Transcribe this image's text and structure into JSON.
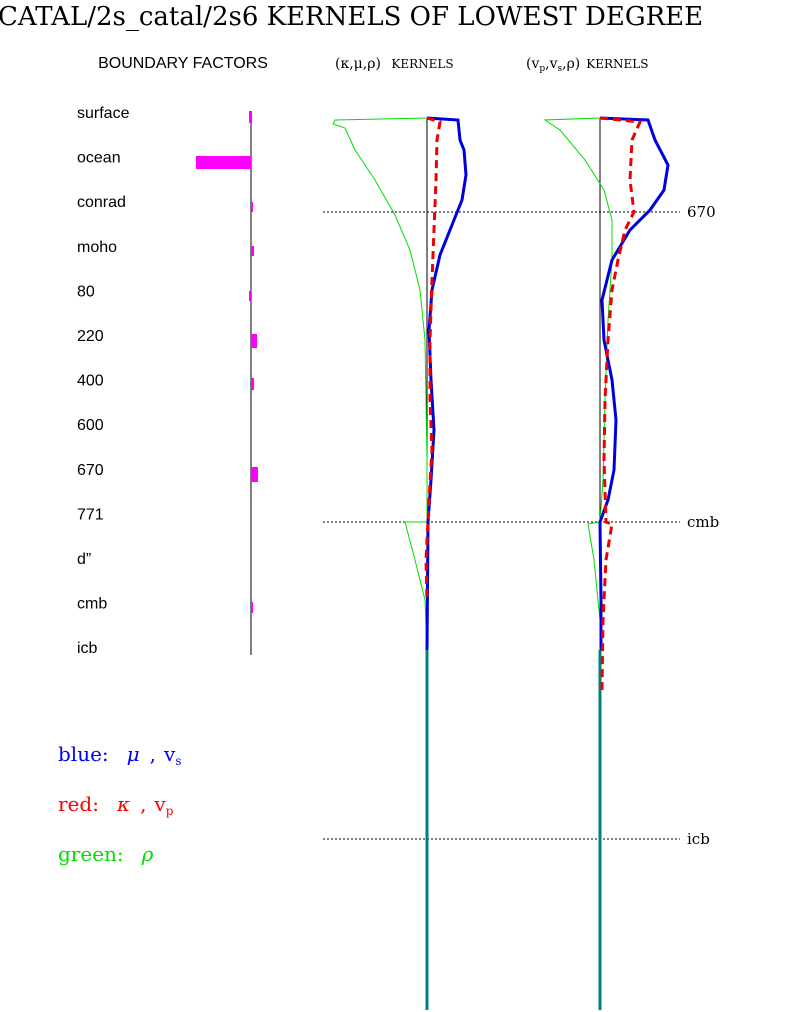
{
  "header": {
    "title": "CATAL/2s_catal/2s6 KERNELS OF LOWEST DEGREE",
    "boundary_title": "BOUNDARY FACTORS",
    "panel1_title": [
      "(κ,μ,ρ)",
      "KERNELS"
    ],
    "panel2_title": [
      "(v",
      "p",
      ",v",
      "s",
      ",ρ)",
      "KERNELS"
    ]
  },
  "boundaries": [
    "surface",
    "ocean",
    "conrad",
    "moho",
    "80",
    "220",
    "400",
    "600",
    "670",
    "771",
    "d”",
    "cmb",
    "icb"
  ],
  "depth_lines": [
    "670",
    "cmb",
    "icb"
  ],
  "legend": [
    {
      "label": "blue:",
      "symbol": "μ",
      "sep": ",",
      "var": "v",
      "sub": "s",
      "color": "#0000ff"
    },
    {
      "label": "red:",
      "symbol": "κ",
      "sep": ",",
      "var": "v",
      "sub": "p",
      "color": "#ff0000"
    },
    {
      "label": "green:",
      "symbol": "ρ",
      "color": "#00dd00"
    }
  ]
}
